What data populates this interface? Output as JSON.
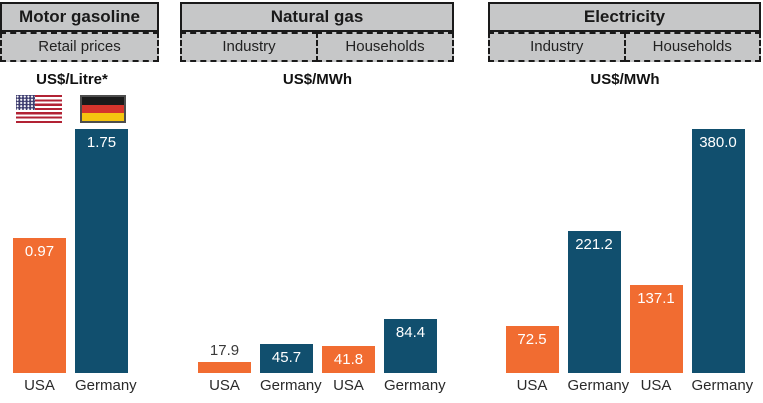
{
  "colors": {
    "usa_bar": "#F16C31",
    "germany_bar": "#114F6E",
    "header_fill": "#C6C7C8",
    "border": "#1A1A1A",
    "value_label_inside": "#FFFFFF",
    "value_label_outside": "#3A3A3A"
  },
  "icons": {
    "usa_flag": "usa-flag-icon",
    "germany_flag": "germany-flag-icon"
  },
  "chart_data": [
    {
      "type": "bar",
      "title": "Motor gasoline",
      "subgroups": [
        "Retail prices"
      ],
      "unit": "US$/Litre*",
      "categories": [
        "USA",
        "Germany"
      ],
      "values": [
        0.97,
        1.75
      ],
      "labels": [
        "0.97",
        "1.75"
      ],
      "bar_colors": [
        "#F16C31",
        "#114F6E"
      ],
      "ylim": [
        0,
        1.75
      ],
      "grid": false,
      "legend": "flags above bars (USA, Germany)"
    },
    {
      "type": "bar",
      "title": "Natural gas",
      "subgroups": [
        "Industry",
        "Households"
      ],
      "unit": "US$/MWh",
      "categories": [
        "USA",
        "Germany",
        "USA",
        "Germany"
      ],
      "values": [
        17.9,
        45.7,
        41.8,
        84.4
      ],
      "labels": [
        "17.9",
        "45.7",
        "41.8",
        "84.4"
      ],
      "bar_colors": [
        "#F16C31",
        "#114F6E",
        "#F16C31",
        "#114F6E"
      ],
      "ylim": [
        0,
        380
      ],
      "grid": false
    },
    {
      "type": "bar",
      "title": "Electricity",
      "subgroups": [
        "Industry",
        "Households"
      ],
      "unit": "US$/MWh",
      "categories": [
        "USA",
        "Germany",
        "USA",
        "Germany"
      ],
      "values": [
        72.5,
        221.2,
        137.1,
        380.0
      ],
      "labels": [
        "72.5",
        "221.2",
        "137.1",
        "380.0"
      ],
      "bar_colors": [
        "#F16C31",
        "#114F6E",
        "#F16C31",
        "#114F6E"
      ],
      "ylim": [
        0,
        380
      ],
      "grid": false
    }
  ]
}
